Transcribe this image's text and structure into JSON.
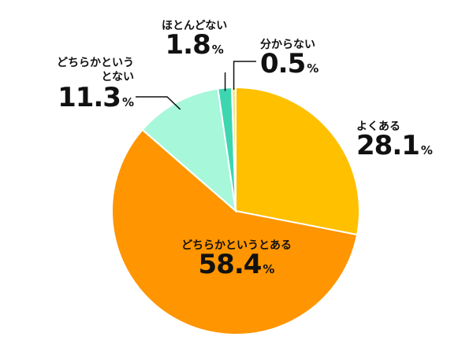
{
  "chart_data": {
    "type": "pie",
    "start_angle_deg": 0,
    "direction": "clockwise",
    "unit": "%",
    "slices": [
      {
        "label": "よくある",
        "value": 28.1,
        "value_text": "28.1",
        "color": "#FFC000"
      },
      {
        "label": "どちらかというとある",
        "value": 58.4,
        "value_text": "58.4",
        "color": "#FF9500"
      },
      {
        "label": "どちらかというとない",
        "value": 11.3,
        "value_text": "11.3",
        "color": "#A7F7DA"
      },
      {
        "label": "ほとんどない",
        "value": 1.8,
        "value_text": "1.8",
        "color": "#3DD6B0"
      },
      {
        "label": "分からない",
        "value": 0.5,
        "value_text": "0.5",
        "color": "#F3E78A"
      }
    ],
    "legend": "none"
  }
}
